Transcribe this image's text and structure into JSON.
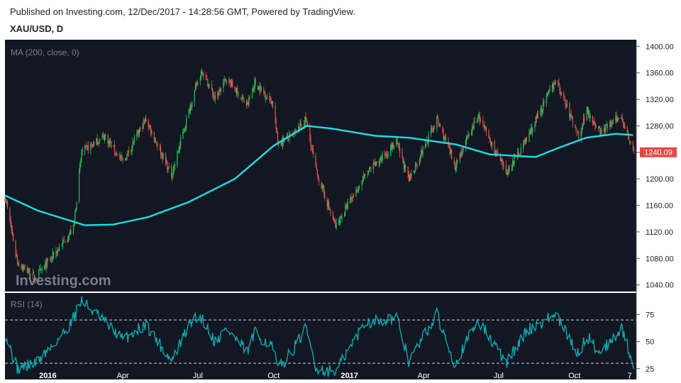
{
  "header": {
    "published": "Published on Investing.com, 12/Dec/2017 - 14:28:56 GMT, Powered by TradingView.",
    "symbol": "XAU/USD, D"
  },
  "colors": {
    "background": "#131722",
    "up_candle": "#2ebd5f",
    "down_candle": "#e0564f",
    "ma_line": "#19e0e8",
    "rsi_line": "#0fa7ae",
    "last_price_label": "#e04a46",
    "axis_text": "#222222"
  },
  "chart_data": [
    {
      "type": "candlestick",
      "indicator_label": "MA (200, close, 0)",
      "watermark": "Investing.com",
      "last_price": 1240.09,
      "last_price_label": "1240.09",
      "ylim": [
        1030,
        1410
      ],
      "yticks": [
        1040,
        1080,
        1120,
        1160,
        1200,
        1240,
        1280,
        1320,
        1360,
        1400
      ],
      "ytick_labels": [
        "1040.00",
        "1080.00",
        "1120.00",
        "1160.00",
        "1200.00",
        "1240.00",
        "1280.00",
        "1320.00",
        "1360.00",
        "1400.00"
      ],
      "xlim": [
        "2015-11-10",
        "2017-12-15"
      ],
      "xticks": [
        {
          "date": "2016-01-01",
          "label": "2016",
          "bold": true
        },
        {
          "date": "2016-04-01",
          "label": "Apr",
          "bold": false
        },
        {
          "date": "2016-07-01",
          "label": "Jul",
          "bold": false
        },
        {
          "date": "2016-10-01",
          "label": "Oct",
          "bold": false
        },
        {
          "date": "2017-01-01",
          "label": "2017",
          "bold": true
        },
        {
          "date": "2017-04-01",
          "label": "Apr",
          "bold": false
        },
        {
          "date": "2017-07-01",
          "label": "Jul",
          "bold": false
        },
        {
          "date": "2017-10-01",
          "label": "Oct",
          "bold": false
        },
        {
          "date": "2017-12-07",
          "label": "7",
          "bold": false
        }
      ],
      "price_path": [
        {
          "date": "2015-11-10",
          "close": 1175
        },
        {
          "date": "2015-11-25",
          "close": 1075
        },
        {
          "date": "2015-12-17",
          "close": 1050
        },
        {
          "date": "2016-01-05",
          "close": 1080
        },
        {
          "date": "2016-02-01",
          "close": 1125
        },
        {
          "date": "2016-02-11",
          "close": 1240
        },
        {
          "date": "2016-03-10",
          "close": 1265
        },
        {
          "date": "2016-04-01",
          "close": 1225
        },
        {
          "date": "2016-04-29",
          "close": 1290
        },
        {
          "date": "2016-05-30",
          "close": 1205
        },
        {
          "date": "2016-06-24",
          "close": 1320
        },
        {
          "date": "2016-07-06",
          "close": 1365
        },
        {
          "date": "2016-07-22",
          "close": 1320
        },
        {
          "date": "2016-08-05",
          "close": 1352
        },
        {
          "date": "2016-08-30",
          "close": 1310
        },
        {
          "date": "2016-09-08",
          "close": 1345
        },
        {
          "date": "2016-09-30",
          "close": 1315
        },
        {
          "date": "2016-10-06",
          "close": 1255
        },
        {
          "date": "2016-10-24",
          "close": 1265
        },
        {
          "date": "2016-11-09",
          "close": 1290
        },
        {
          "date": "2016-11-22",
          "close": 1210
        },
        {
          "date": "2016-12-15",
          "close": 1128
        },
        {
          "date": "2017-01-20",
          "close": 1205
        },
        {
          "date": "2017-02-27",
          "close": 1255
        },
        {
          "date": "2017-03-14",
          "close": 1198
        },
        {
          "date": "2017-04-17",
          "close": 1290
        },
        {
          "date": "2017-05-09",
          "close": 1220
        },
        {
          "date": "2017-06-06",
          "close": 1295
        },
        {
          "date": "2017-07-10",
          "close": 1208
        },
        {
          "date": "2017-08-04",
          "close": 1260
        },
        {
          "date": "2017-09-08",
          "close": 1350
        },
        {
          "date": "2017-10-06",
          "close": 1265
        },
        {
          "date": "2017-10-16",
          "close": 1305
        },
        {
          "date": "2017-11-01",
          "close": 1270
        },
        {
          "date": "2017-11-27",
          "close": 1295
        },
        {
          "date": "2017-12-12",
          "close": 1240
        }
      ],
      "ma_path": [
        {
          "date": "2015-11-10",
          "value": 1175
        },
        {
          "date": "2015-12-20",
          "value": 1152
        },
        {
          "date": "2016-02-15",
          "value": 1130
        },
        {
          "date": "2016-03-20",
          "value": 1131
        },
        {
          "date": "2016-05-01",
          "value": 1142
        },
        {
          "date": "2016-06-20",
          "value": 1165
        },
        {
          "date": "2016-08-15",
          "value": 1200
        },
        {
          "date": "2016-10-01",
          "value": 1250
        },
        {
          "date": "2016-11-10",
          "value": 1280
        },
        {
          "date": "2016-12-10",
          "value": 1276
        },
        {
          "date": "2017-02-01",
          "value": 1265
        },
        {
          "date": "2017-03-15",
          "value": 1262
        },
        {
          "date": "2017-05-10",
          "value": 1252
        },
        {
          "date": "2017-06-20",
          "value": 1237
        },
        {
          "date": "2017-08-15",
          "value": 1233
        },
        {
          "date": "2017-09-10",
          "value": 1246
        },
        {
          "date": "2017-10-15",
          "value": 1262
        },
        {
          "date": "2017-11-20",
          "value": 1268
        },
        {
          "date": "2017-12-12",
          "value": 1266
        }
      ]
    },
    {
      "type": "line",
      "indicator_label": "RSI (14)",
      "ylim": [
        15,
        95
      ],
      "yticks": [
        25,
        50,
        75
      ],
      "ytick_labels": [
        "25",
        "50",
        "75"
      ],
      "reference_lines": [
        70,
        30
      ],
      "rsi_path": [
        {
          "date": "2015-11-10",
          "value": 58
        },
        {
          "date": "2015-11-25",
          "value": 25
        },
        {
          "date": "2015-12-17",
          "value": 30
        },
        {
          "date": "2016-01-05",
          "value": 45
        },
        {
          "date": "2016-01-25",
          "value": 62
        },
        {
          "date": "2016-02-11",
          "value": 88
        },
        {
          "date": "2016-03-10",
          "value": 68
        },
        {
          "date": "2016-04-01",
          "value": 52
        },
        {
          "date": "2016-04-29",
          "value": 66
        },
        {
          "date": "2016-05-30",
          "value": 32
        },
        {
          "date": "2016-06-24",
          "value": 70
        },
        {
          "date": "2016-07-06",
          "value": 72
        },
        {
          "date": "2016-07-22",
          "value": 50
        },
        {
          "date": "2016-08-05",
          "value": 62
        },
        {
          "date": "2016-08-30",
          "value": 40
        },
        {
          "date": "2016-09-08",
          "value": 58
        },
        {
          "date": "2016-09-30",
          "value": 45
        },
        {
          "date": "2016-10-06",
          "value": 24
        },
        {
          "date": "2016-10-24",
          "value": 42
        },
        {
          "date": "2016-11-09",
          "value": 62
        },
        {
          "date": "2016-11-22",
          "value": 25
        },
        {
          "date": "2016-12-15",
          "value": 22
        },
        {
          "date": "2017-01-20",
          "value": 68
        },
        {
          "date": "2017-02-27",
          "value": 72
        },
        {
          "date": "2017-03-14",
          "value": 32
        },
        {
          "date": "2017-04-17",
          "value": 75
        },
        {
          "date": "2017-05-09",
          "value": 30
        },
        {
          "date": "2017-06-06",
          "value": 70
        },
        {
          "date": "2017-07-10",
          "value": 30
        },
        {
          "date": "2017-08-04",
          "value": 60
        },
        {
          "date": "2017-09-08",
          "value": 75
        },
        {
          "date": "2017-10-06",
          "value": 38
        },
        {
          "date": "2017-10-16",
          "value": 55
        },
        {
          "date": "2017-11-01",
          "value": 40
        },
        {
          "date": "2017-11-27",
          "value": 62
        },
        {
          "date": "2017-12-12",
          "value": 29
        }
      ]
    }
  ]
}
